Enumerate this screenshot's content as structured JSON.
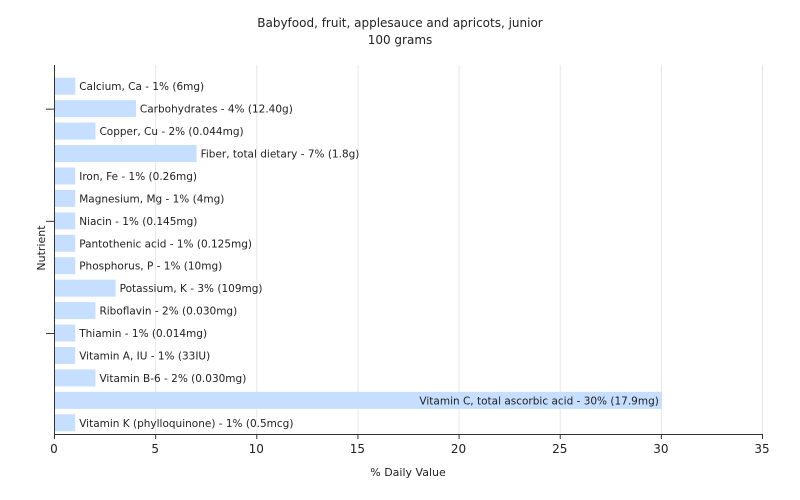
{
  "chart_data": {
    "type": "bar",
    "orientation": "horizontal",
    "title": "Babyfood, fruit, applesauce and apricots, junior",
    "subtitle": "100 grams",
    "xlabel": "% Daily Value",
    "ylabel": "Nutrient",
    "xlim": [
      0,
      35
    ],
    "xticks": [
      0,
      5,
      10,
      15,
      20,
      25,
      30,
      35
    ],
    "grid": true,
    "bar_color": "#c6deff",
    "categories": [
      "Calcium, Ca",
      "Carbohydrates",
      "Copper, Cu",
      "Fiber, total dietary",
      "Iron, Fe",
      "Magnesium, Mg",
      "Niacin",
      "Pantothenic acid",
      "Phosphorus, P",
      "Potassium, K",
      "Riboflavin",
      "Thiamin",
      "Vitamin A, IU",
      "Vitamin B-6",
      "Vitamin C, total ascorbic acid",
      "Vitamin K (phylloquinone)"
    ],
    "values": [
      1,
      4,
      2,
      7,
      1,
      1,
      1,
      1,
      1,
      3,
      2,
      1,
      1,
      2,
      30,
      1
    ],
    "labels": [
      "Calcium, Ca - 1% (6mg)",
      "Carbohydrates - 4% (12.40g)",
      "Copper, Cu - 2% (0.044mg)",
      "Fiber, total dietary - 7% (1.8g)",
      "Iron, Fe - 1% (0.26mg)",
      "Magnesium, Mg - 1% (4mg)",
      "Niacin - 1% (0.145mg)",
      "Pantothenic acid - 1% (0.125mg)",
      "Phosphorus, P - 1% (10mg)",
      "Potassium, K - 3% (109mg)",
      "Riboflavin - 2% (0.030mg)",
      "Thiamin - 1% (0.014mg)",
      "Vitamin A, IU - 1% (33IU)",
      "Vitamin B-6 - 2% (0.030mg)",
      "Vitamin C, total ascorbic acid - 30% (17.9mg)",
      "Vitamin K (phylloquinone) - 1% (0.5mcg)"
    ]
  }
}
